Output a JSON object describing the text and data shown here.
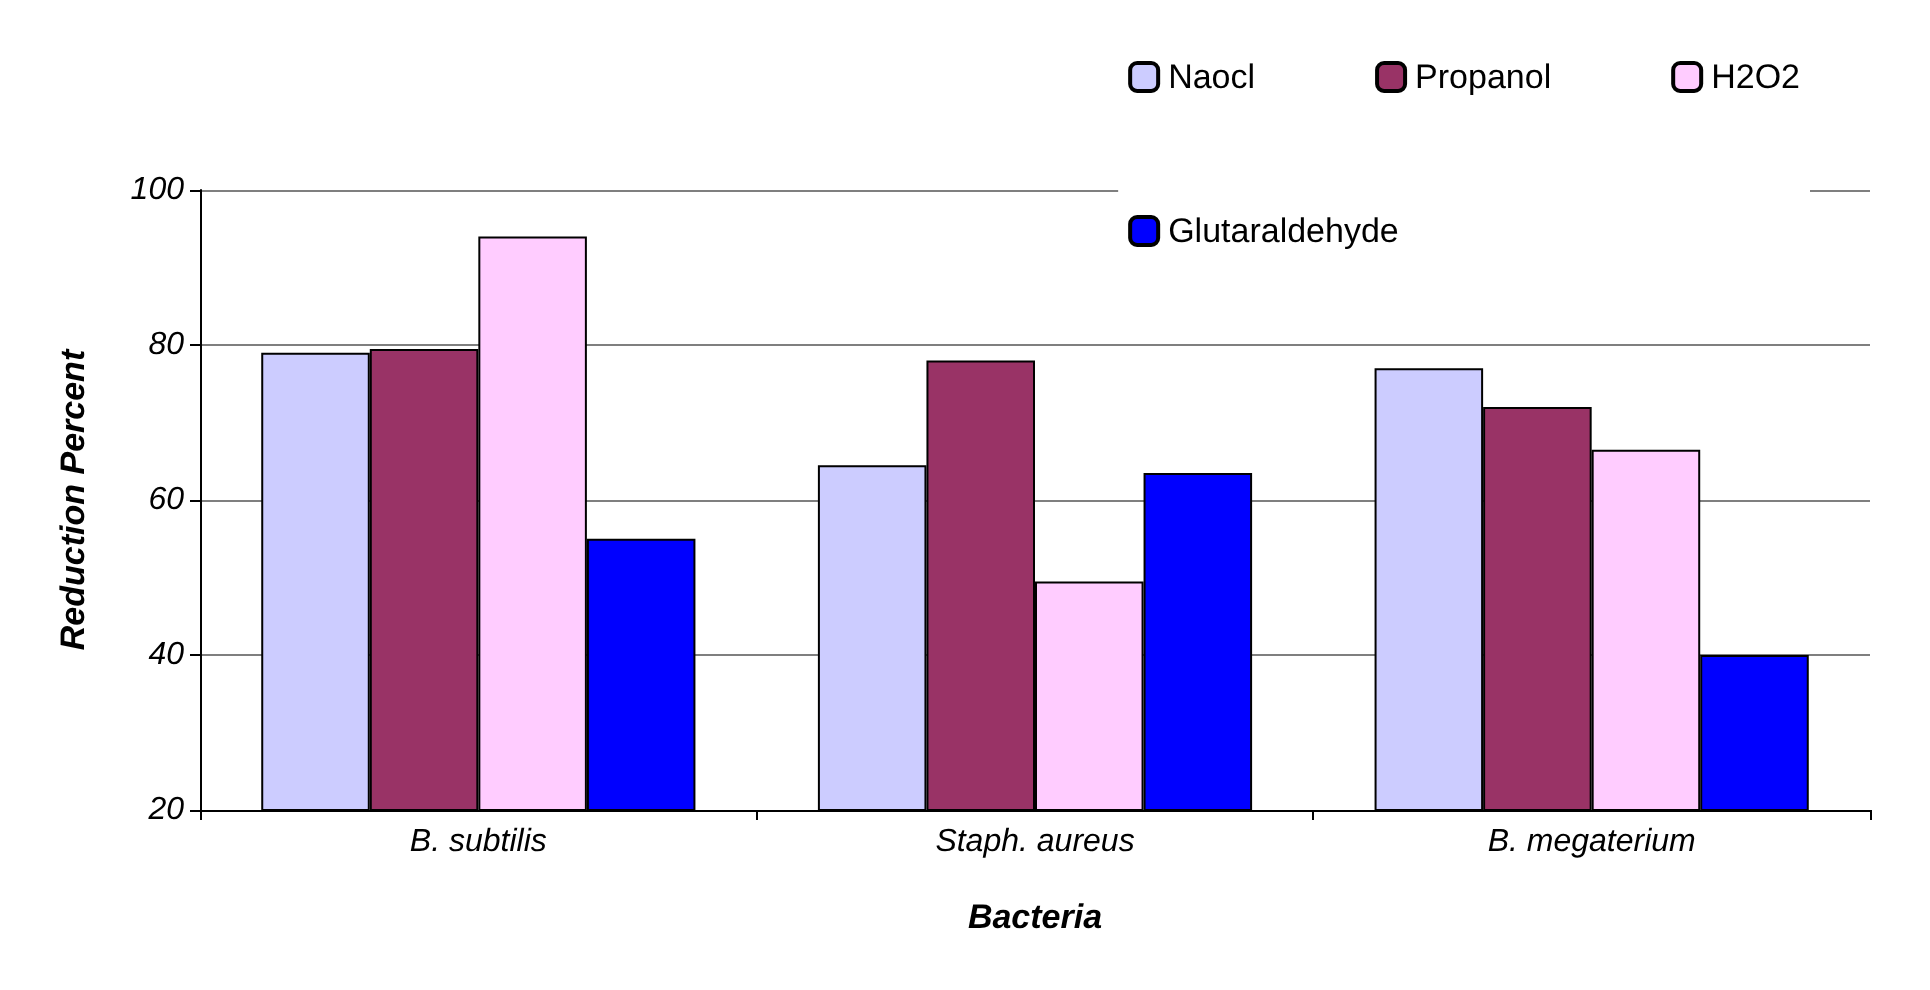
{
  "chart_data": {
    "type": "bar",
    "xlabel": "Bacteria",
    "ylabel": "Reduction Percent",
    "categories": [
      "B. subtilis",
      "Staph. aureus",
      "B. megaterium"
    ],
    "series": [
      {
        "name": "Naocl",
        "color": "#ccccff",
        "values": [
          79,
          64.5,
          77
        ]
      },
      {
        "name": "Propanol",
        "color": "#993366",
        "values": [
          79.5,
          78,
          72
        ]
      },
      {
        "name": "H2O2",
        "color": "#ffccff",
        "values": [
          94,
          49.5,
          66.5
        ]
      },
      {
        "name": "Glutaraldehyde",
        "color": "#0000ff",
        "values": [
          55,
          63.5,
          40
        ]
      }
    ],
    "ylim": [
      20,
      100
    ],
    "yticks": [
      20,
      40,
      60,
      80,
      100
    ],
    "grid": "y",
    "legend": "top right"
  }
}
